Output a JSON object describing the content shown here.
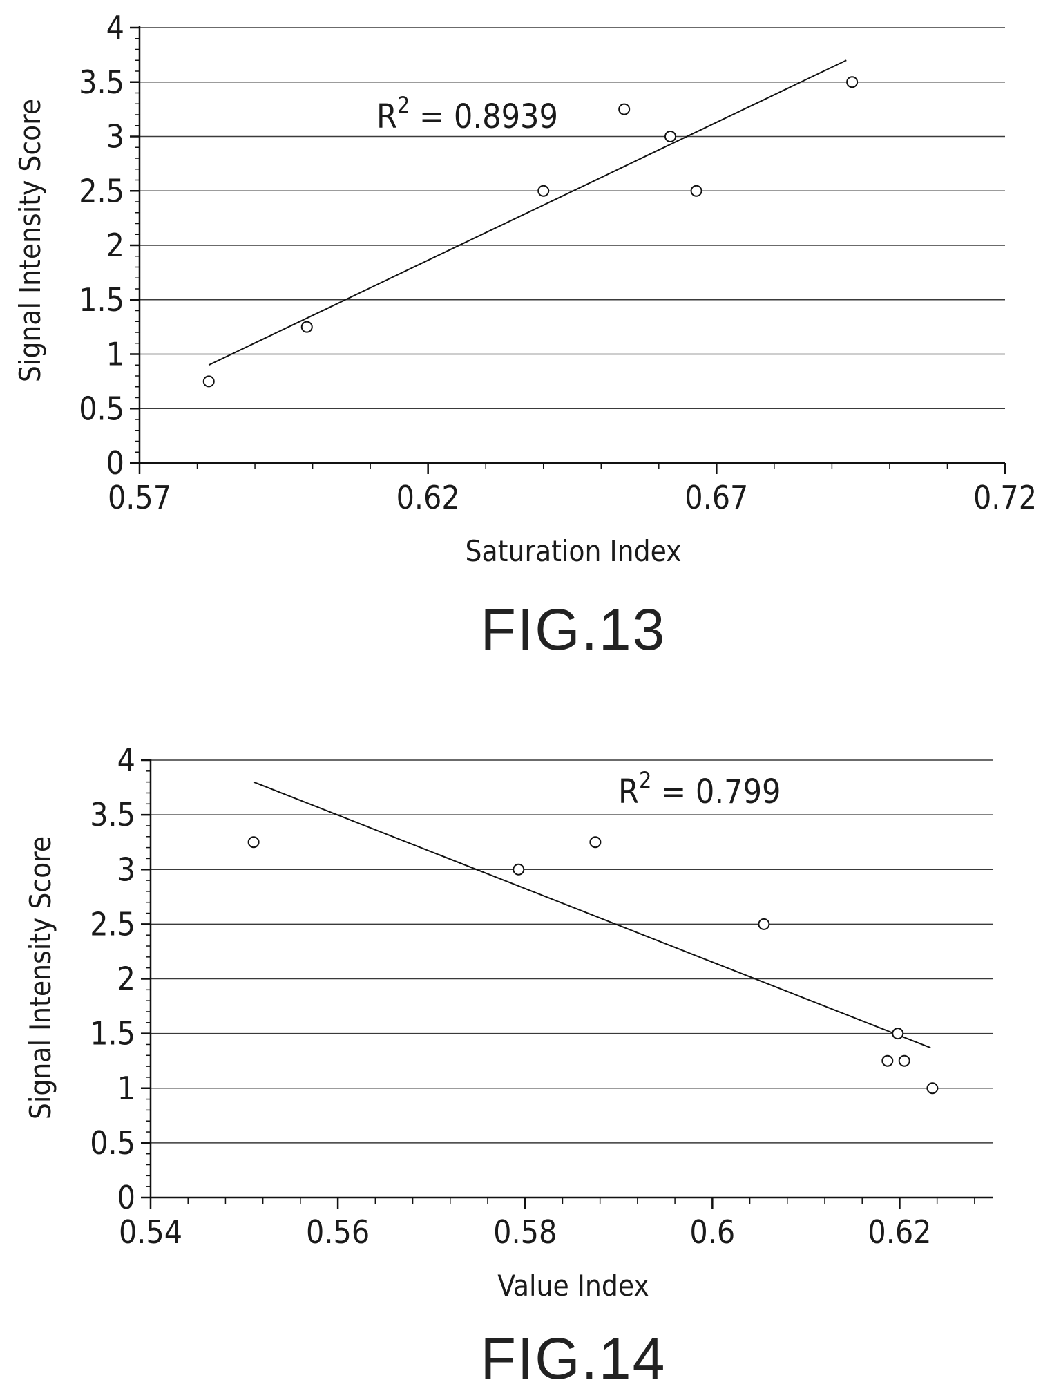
{
  "chart_data": [
    {
      "type": "scatter",
      "figure_label": "FIG.13",
      "xlabel": "Saturation Index",
      "ylabel": "Signal Intensity Score",
      "xlim": [
        0.57,
        0.72
      ],
      "ylim": [
        0,
        4
      ],
      "x_ticks": [
        "0.57",
        "0.62",
        "0.67",
        "0.72"
      ],
      "y_ticks": [
        "0",
        "0.5",
        "1",
        "1.5",
        "2",
        "2.5",
        "3",
        "3.5",
        "4"
      ],
      "grid": "horizontal",
      "annotation": {
        "base": "R",
        "sup": "2",
        "rest": " =  0.8939"
      },
      "points": [
        {
          "x": 0.582,
          "y": 0.75
        },
        {
          "x": 0.599,
          "y": 1.25
        },
        {
          "x": 0.64,
          "y": 2.5
        },
        {
          "x": 0.654,
          "y": 3.25
        },
        {
          "x": 0.662,
          "y": 3.0
        },
        {
          "x": 0.6665,
          "y": 2.5
        },
        {
          "x": 0.6935,
          "y": 3.5
        }
      ],
      "trendline": {
        "x": [
          0.582,
          0.6925
        ],
        "y": [
          0.9,
          3.7
        ]
      }
    },
    {
      "type": "scatter",
      "figure_label": "FIG.14",
      "xlabel": "Value Index",
      "ylabel": "Signal Intensity Score",
      "xlim": [
        0.54,
        0.63
      ],
      "ylim": [
        0,
        4
      ],
      "x_ticks": [
        "0.54",
        "0.56",
        "0.58",
        "0.6",
        "0.62"
      ],
      "y_ticks": [
        "0",
        "0.5",
        "1",
        "1.5",
        "2",
        "2.5",
        "3",
        "3.5",
        "4"
      ],
      "grid": "horizontal",
      "annotation": {
        "base": "R",
        "sup": "2",
        "rest": " =  0.799"
      },
      "points": [
        {
          "x": 0.551,
          "y": 3.25
        },
        {
          "x": 0.5793,
          "y": 3.0
        },
        {
          "x": 0.5875,
          "y": 3.25
        },
        {
          "x": 0.6055,
          "y": 2.5
        },
        {
          "x": 0.6187,
          "y": 1.25
        },
        {
          "x": 0.6198,
          "y": 1.5
        },
        {
          "x": 0.6205,
          "y": 1.25
        },
        {
          "x": 0.6235,
          "y": 1.0
        }
      ],
      "trendline": {
        "x": [
          0.551,
          0.6233
        ],
        "y": [
          3.8,
          1.37
        ]
      }
    }
  ]
}
